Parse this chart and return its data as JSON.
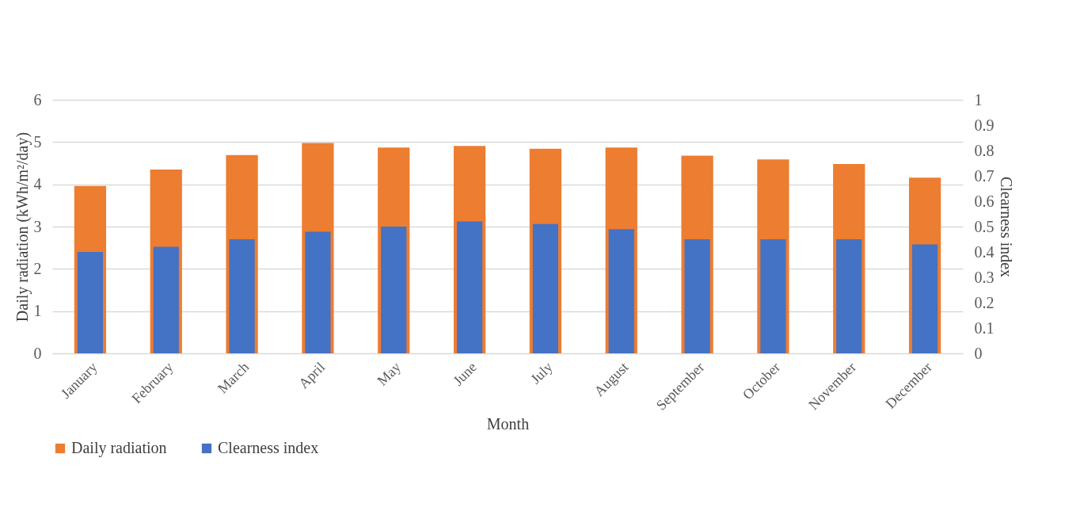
{
  "chart_data": {
    "type": "bar",
    "xlabel": "Month",
    "ylabel": "Daily radiation (kWh/m²/day)",
    "y2label": "Clearness index",
    "categories": [
      "January",
      "February",
      "March",
      "April",
      "May",
      "June",
      "July",
      "August",
      "September",
      "October",
      "November",
      "December"
    ],
    "series": [
      {
        "name": "Daily radiation",
        "color": "#ed7d31",
        "values": [
          3.96,
          4.35,
          4.69,
          4.98,
          4.87,
          4.91,
          4.84,
          4.87,
          4.68,
          4.59,
          4.48,
          4.16
        ]
      },
      {
        "name": "Clearness index",
        "color": "#4472c4",
        "axis": "y2",
        "values": [
          0.4,
          0.42,
          0.45,
          0.48,
          0.5,
          0.52,
          0.51,
          0.49,
          0.45,
          0.45,
          0.45,
          0.43
        ]
      }
    ],
    "ylim": [
      0,
      6
    ],
    "yticks": [
      0,
      1,
      2,
      3,
      4,
      5,
      6
    ],
    "y2lim": [
      0,
      1
    ],
    "y2ticks": [
      0,
      0.1,
      0.2,
      0.3,
      0.4,
      0.5,
      0.6,
      0.7,
      0.8,
      0.9,
      1
    ],
    "grid": "y",
    "legend": "bottom"
  }
}
